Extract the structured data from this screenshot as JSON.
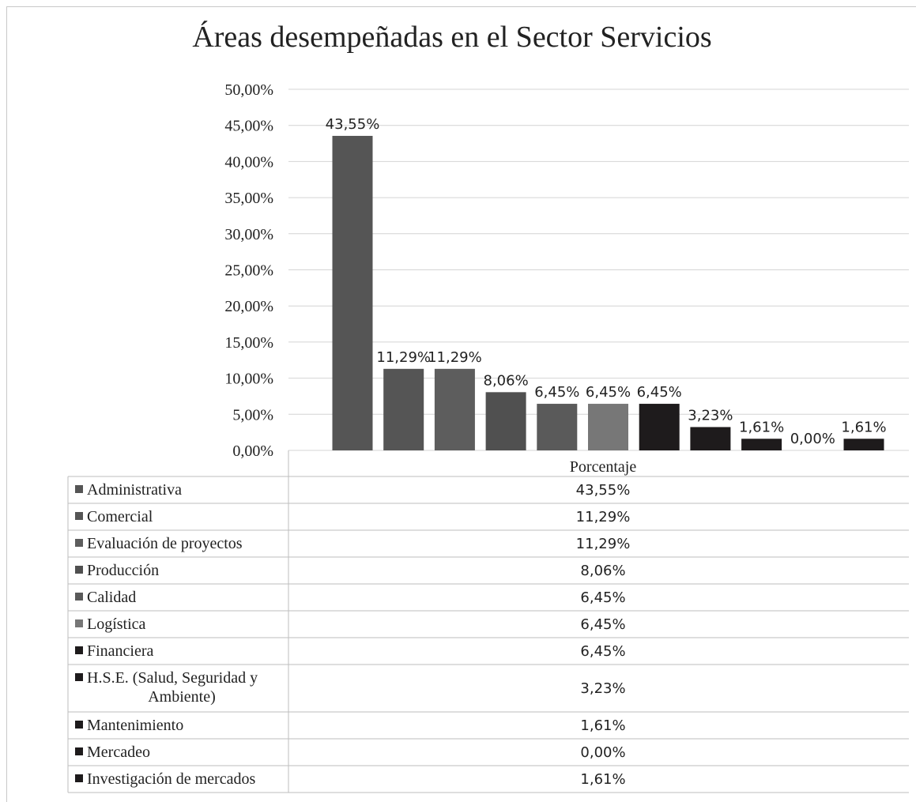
{
  "chart_data": {
    "type": "bar",
    "title": "Áreas desempeñadas  en el Sector Servicios",
    "series_name": "Porcentaje",
    "ylim": [
      0,
      50
    ],
    "yticks": [
      "0,00%",
      "5,00%",
      "10,00%",
      "15,00%",
      "20,00%",
      "25,00%",
      "30,00%",
      "35,00%",
      "40,00%",
      "45,00%",
      "50,00%"
    ],
    "grid": true,
    "legend": "data-table-below",
    "categories": [
      "Administrativa",
      "Comercial",
      "Evaluación de proyectos",
      "Producción",
      "Calidad",
      "Logística",
      "Financiera",
      "H.S.E. (Salud, Seguridad y Ambiente)",
      "Mantenimiento",
      "Mercadeo",
      "Investigación de mercados"
    ],
    "table_category_lines": [
      [
        "Administrativa"
      ],
      [
        "Comercial"
      ],
      [
        "Evaluación de proyectos"
      ],
      [
        "Producción"
      ],
      [
        "Calidad"
      ],
      [
        "Logística"
      ],
      [
        "Financiera"
      ],
      [
        "H.S.E. (Salud, Seguridad y",
        "Ambiente)"
      ],
      [
        "Mantenimiento"
      ],
      [
        "Mercadeo"
      ],
      [
        "Investigación de mercados"
      ]
    ],
    "values": [
      43.55,
      11.29,
      11.29,
      8.06,
      6.45,
      6.45,
      6.45,
      3.23,
      1.61,
      0.0,
      1.61
    ],
    "value_labels": [
      "43,55%",
      "11,29%",
      "11,29%",
      "8,06%",
      "6,45%",
      "6,45%",
      "6,45%",
      "3,23%",
      "1,61%",
      "0,00%",
      "1,61%"
    ],
    "colors": [
      "#555555",
      "#555555",
      "#5d5d5d",
      "#505050",
      "#5a5a5a",
      "#777777",
      "#1e1b1c",
      "#1e1b1c",
      "#1e1b1c",
      "#1e1b1c",
      "#1e1b1c"
    ]
  }
}
